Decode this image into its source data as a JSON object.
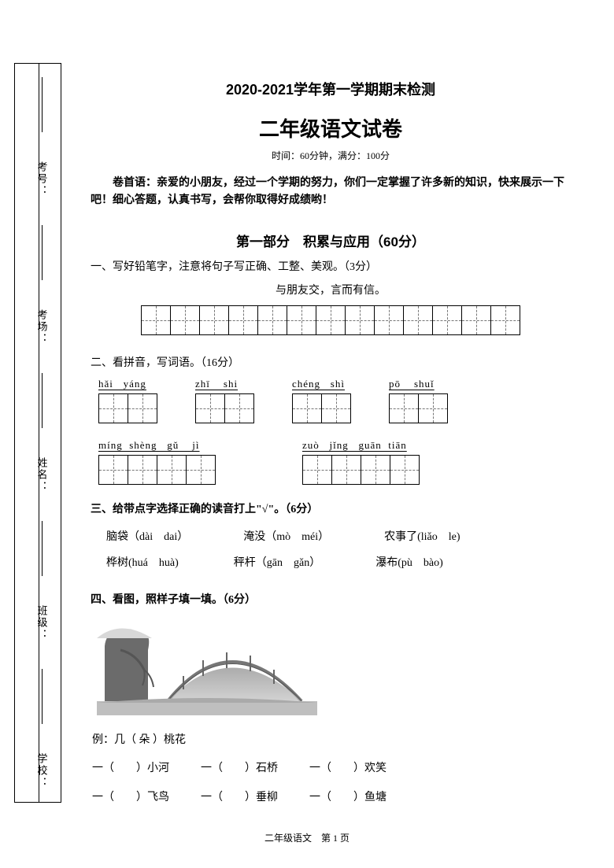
{
  "binding": {
    "labels": [
      "学校：",
      "班级：",
      "姓名：",
      "考场：",
      "考号："
    ]
  },
  "header": {
    "title1": "2020-2021学年第一学期期末检测",
    "title2": "二年级语文试卷",
    "timing": "时间：60分钟，满分：100分",
    "intro": "卷首语：亲爱的小朋友，经过一个学期的努力，你们一定掌握了许多新的知识，快来展示一下吧！细心答题，认真书写，会帮你取得好成绩哟！"
  },
  "part1": {
    "title": "第一部分　积累与应用（60分）",
    "q1": {
      "heading": "一、写好铅笔字，注意将句子写正确、工整、美观。（3分）",
      "sentence": "与朋友交，言而有信。",
      "cells": 13
    },
    "q2": {
      "heading": "二、看拼音，写词语。（16分）",
      "row1": [
        {
          "py": "hǎi   yáng",
          "cells": 2
        },
        {
          "py": "zhī    shi",
          "cells": 2
        },
        {
          "py": "chéng   shì",
          "cells": 2
        },
        {
          "py": "pō    shuǐ",
          "cells": 2
        }
      ],
      "row2": [
        {
          "py": "míng  shèng   gǔ    jì",
          "cells": 4
        },
        {
          "py": "zuò   jǐng   guān  tiān",
          "cells": 4
        }
      ]
    },
    "q3": {
      "heading": "三、给带点字选择正确的读音打上\"√\"。（6分）",
      "items": [
        [
          "脑袋（dài　dai）",
          "淹没（mò　méi）",
          "农事了(liǎo　le)"
        ],
        [
          "桦树(huá　huà)",
          "秤杆（gān　gǎn）",
          "瀑布(pù　bào)"
        ]
      ]
    },
    "q4": {
      "heading": "四、看图，照样子填一填。（6分）",
      "example": "例：几（ 朵 ）桃花",
      "rows": [
        [
          "一（　　）小河",
          "一（　　）石桥",
          "一（　　）欢笑"
        ],
        [
          "一（　　）飞鸟",
          "一（　　）垂柳",
          "一（　　）鱼塘"
        ]
      ]
    }
  },
  "footer": "二年级语文　第 1 页"
}
